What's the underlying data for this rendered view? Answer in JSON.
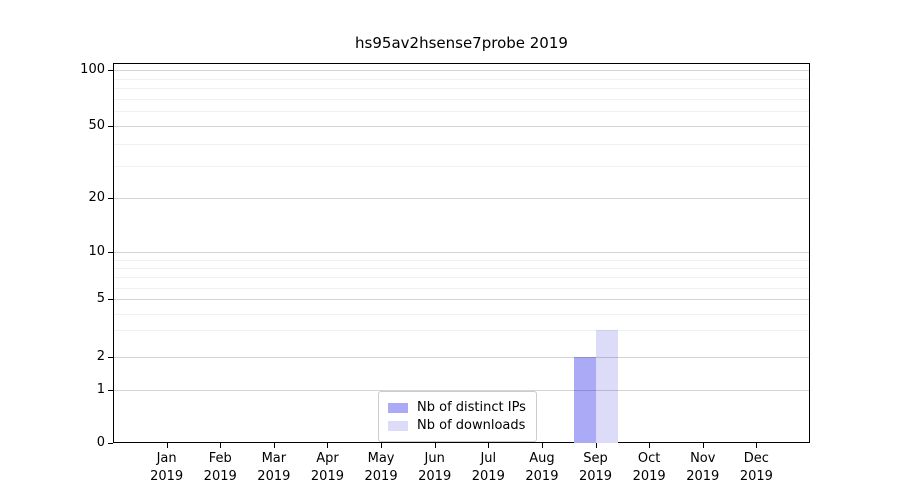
{
  "chart_data": {
    "type": "bar",
    "title": "hs95av2hsense7probe 2019",
    "categories": [
      "Jan 2019",
      "Feb 2019",
      "Mar 2019",
      "Apr 2019",
      "May 2019",
      "Jun 2019",
      "Jul 2019",
      "Aug 2019",
      "Sep 2019",
      "Oct 2019",
      "Nov 2019",
      "Dec 2019"
    ],
    "x_tick_month": [
      "Jan",
      "Feb",
      "Mar",
      "Apr",
      "May",
      "Jun",
      "Jul",
      "Aug",
      "Sep",
      "Oct",
      "Nov",
      "Dec"
    ],
    "x_tick_year": "2019",
    "series": [
      {
        "name": "Nb of distinct IPs",
        "color": "#aaaaf7",
        "values": [
          0,
          0,
          0,
          0,
          0,
          0,
          0,
          0,
          2,
          0,
          0,
          0
        ]
      },
      {
        "name": "Nb of downloads",
        "color": "#dcdcf9",
        "values": [
          0,
          0,
          0,
          0,
          0,
          0,
          0,
          0,
          3,
          0,
          0,
          0
        ]
      }
    ],
    "yscale": "symlog",
    "ylim": [
      0,
      110
    ],
    "yticks_major": [
      0,
      1,
      2,
      5,
      10,
      20,
      50,
      100
    ],
    "yticks_minor": [
      3,
      4,
      6,
      7,
      8,
      9,
      30,
      40,
      60,
      70,
      80,
      90
    ],
    "grid": "horizontal",
    "legend_position": "lower center",
    "axis_color": "#000000",
    "major_grid_color": "#d4d4d4",
    "minor_grid_color": "#f0f0f0"
  }
}
